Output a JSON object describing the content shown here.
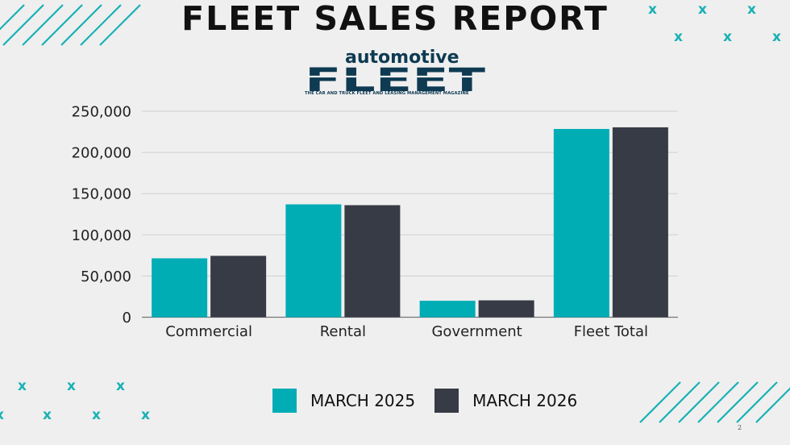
{
  "header": {
    "title": "FLEET SALES REPORT"
  },
  "logo": {
    "top_text": "automotive",
    "main_text": "FLEET",
    "tagline": "THE CAR AND TRUCK FLEET AND LEASING MANAGEMENT MAGAZINE"
  },
  "colors": {
    "accent": "#00adb5",
    "dark": "#373b45",
    "background": "#efefef",
    "logo_navy": "#0e3a52"
  },
  "chart_data": {
    "type": "bar",
    "title": "",
    "categories": [
      "Commercial",
      "Rental",
      "Government",
      "Fleet Total"
    ],
    "series": [
      {
        "name": "MARCH 2025",
        "color": "#00adb5",
        "values": [
          71500,
          137000,
          20000,
          228500
        ]
      },
      {
        "name": "MARCH 2026",
        "color": "#373b45",
        "values": [
          74500,
          136000,
          20500,
          230500
        ]
      }
    ],
    "yticks": [
      "0",
      "50,000",
      "100,000",
      "150,000",
      "200,000",
      "250,000"
    ],
    "ylim": [
      0,
      250000
    ],
    "grid": true,
    "legend": "bottom-center"
  },
  "page_number": "2"
}
